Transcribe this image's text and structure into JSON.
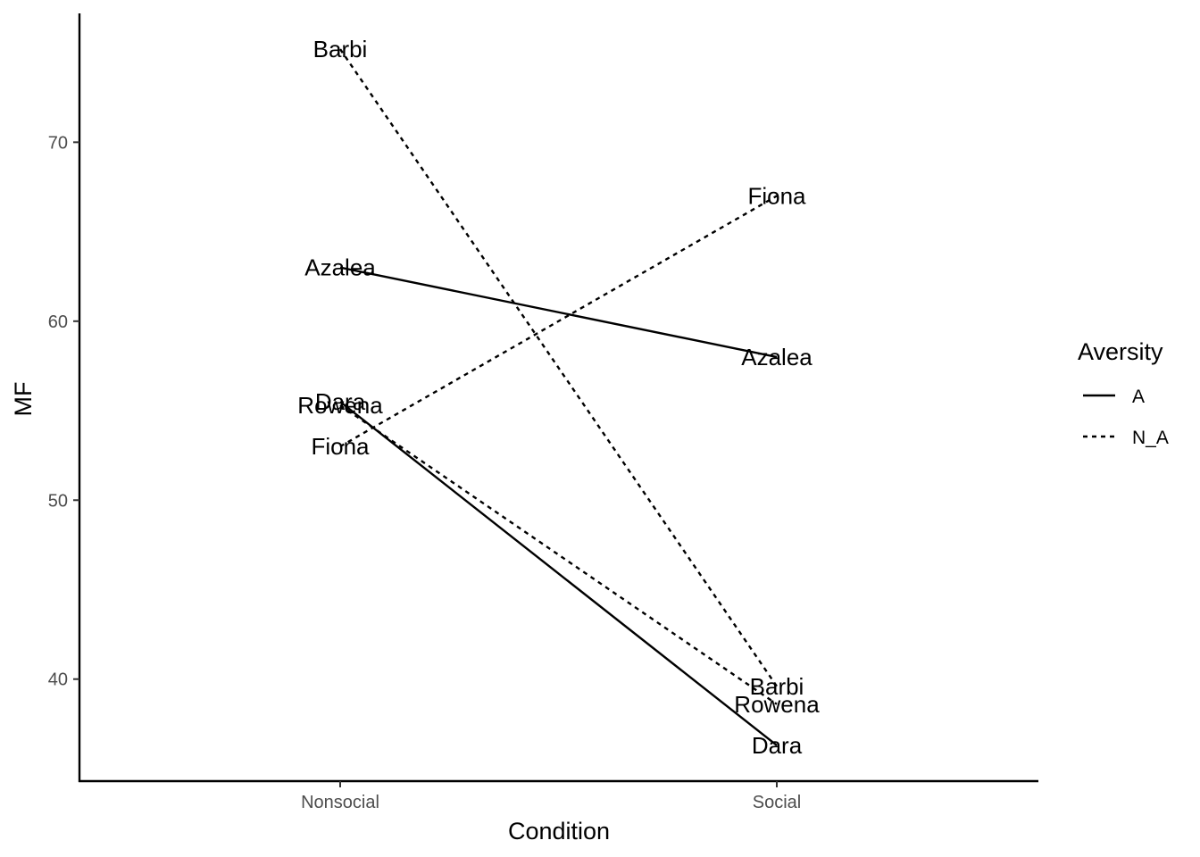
{
  "chart_data": {
    "type": "line",
    "xlabel": "Condition",
    "ylabel": "MF",
    "categories": [
      "Nonsocial",
      "Social"
    ],
    "ylim": [
      34.3,
      77.2
    ],
    "yticks": [
      40,
      50,
      60,
      70
    ],
    "grid": false,
    "legend": {
      "title": "Aversity",
      "position": "right",
      "entries": [
        {
          "label": "A",
          "linetype": "solid"
        },
        {
          "label": "N_A",
          "linetype": "dashed"
        }
      ]
    },
    "series": [
      {
        "name": "Azalea",
        "aversity": "A",
        "values": [
          63.0,
          58.0
        ]
      },
      {
        "name": "Dara",
        "aversity": "A",
        "values": [
          55.5,
          36.3
        ]
      },
      {
        "name": "Barbi",
        "aversity": "N_A",
        "values": [
          75.2,
          39.6
        ]
      },
      {
        "name": "Fiona",
        "aversity": "N_A",
        "values": [
          53.0,
          67.0
        ]
      },
      {
        "name": "Rowena",
        "aversity": "N_A",
        "values": [
          55.3,
          38.6
        ]
      }
    ],
    "line_color": "#000000",
    "text_color": "#000000",
    "tick_color": "#4d4d4d"
  }
}
